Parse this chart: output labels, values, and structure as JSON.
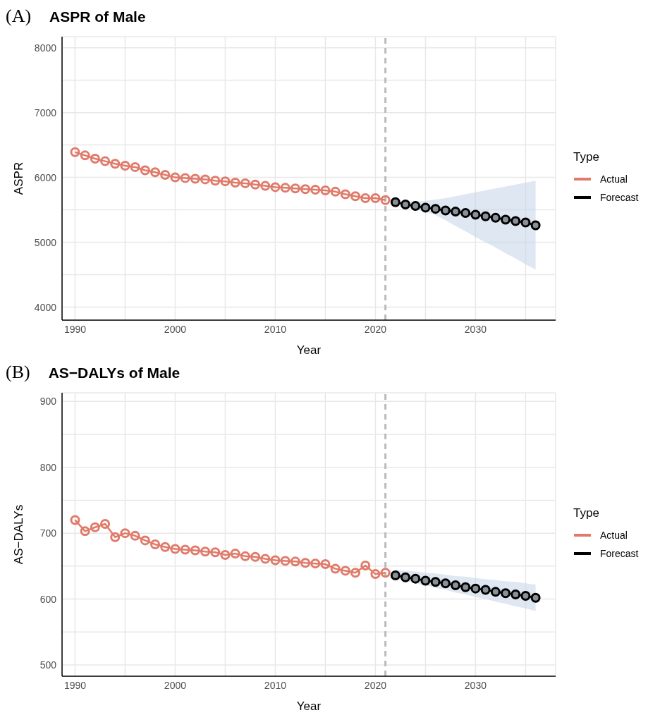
{
  "chart_data": [
    {
      "type": "line",
      "title": "ASPR of Male",
      "annotations": [
        "(A)"
      ],
      "xlabel": "Year",
      "ylabel": "ASPR",
      "legend_title": "Type",
      "legend": "right",
      "grid": true,
      "marker": "circle",
      "line_style": "solid",
      "xlim": [
        1988.7,
        2038
      ],
      "xticks": [
        1990,
        {
          "value": 1995,
          "label": null
        },
        2000,
        {
          "value": 2005,
          "label": null
        },
        2010,
        {
          "value": 2015,
          "label": null
        },
        2020,
        {
          "value": 2025,
          "label": null
        },
        2030,
        {
          "value": 2035,
          "label": null
        }
      ],
      "ylim": [
        3800,
        8170
      ],
      "yticks": [
        4000,
        {
          "value": 4500,
          "label": null
        },
        5000,
        {
          "value": 5500,
          "label": null
        },
        6000,
        {
          "value": 6500,
          "label": null
        },
        7000,
        {
          "value": 7500,
          "label": null
        },
        8000
      ],
      "ref_lines": [
        {
          "axis": "x",
          "value": 2021,
          "label": null,
          "color": "#bbbbbb",
          "line_style": "dashed"
        }
      ],
      "series": [
        {
          "name": "Actual",
          "color": "#e07b6b",
          "x": [
            1990,
            1991,
            1992,
            1993,
            1994,
            1995,
            1996,
            1997,
            1998,
            1999,
            2000,
            2001,
            2002,
            2003,
            2004,
            2005,
            2006,
            2007,
            2008,
            2009,
            2010,
            2011,
            2012,
            2013,
            2014,
            2015,
            2016,
            2017,
            2018,
            2019,
            2020,
            2021
          ],
          "values": [
            6390,
            6340,
            6290,
            6250,
            6210,
            6180,
            6160,
            6110,
            6080,
            6040,
            6000,
            5990,
            5980,
            5970,
            5950,
            5940,
            5920,
            5910,
            5890,
            5870,
            5850,
            5840,
            5830,
            5820,
            5810,
            5800,
            5780,
            5740,
            5710,
            5680,
            5680,
            5650
          ]
        },
        {
          "name": "Forecast",
          "color": "#000000",
          "x": [
            2022,
            2023,
            2024,
            2025,
            2026,
            2027,
            2028,
            2029,
            2030,
            2031,
            2032,
            2033,
            2034,
            2035,
            2036
          ],
          "values": [
            5618,
            5582,
            5560,
            5535,
            5516,
            5491,
            5473,
            5451,
            5425,
            5400,
            5378,
            5349,
            5327,
            5305,
            5262
          ],
          "lower": [
            5620,
            5570,
            5510,
            5470,
            5420,
            5340,
            5250,
            5170,
            5080,
            5000,
            4920,
            4830,
            4750,
            4660,
            4580
          ],
          "upper": [
            5620,
            5620,
            5630,
            5640,
            5660,
            5680,
            5710,
            5740,
            5770,
            5800,
            5830,
            5860,
            5890,
            5920,
            5950
          ]
        }
      ]
    },
    {
      "type": "line",
      "title": "AS−DALYs of Male",
      "annotations": [
        "(B)"
      ],
      "xlabel": "Year",
      "ylabel": "AS−DALYs",
      "legend_title": "Type",
      "legend": "right",
      "grid": true,
      "marker": "circle",
      "line_style": "solid",
      "xlim": [
        1988.7,
        2038
      ],
      "xticks": [
        1990,
        {
          "value": 1995,
          "label": null
        },
        2000,
        {
          "value": 2005,
          "label": null
        },
        2010,
        {
          "value": 2015,
          "label": null
        },
        2020,
        {
          "value": 2025,
          "label": null
        },
        2030,
        {
          "value": 2035,
          "label": null
        }
      ],
      "ylim": [
        483,
        913
      ],
      "yticks": [
        500,
        {
          "value": 550,
          "label": null
        },
        600,
        {
          "value": 650,
          "label": null
        },
        700,
        {
          "value": 750,
          "label": null
        },
        800,
        {
          "value": 850,
          "label": null
        },
        900
      ],
      "ref_lines": [
        {
          "axis": "x",
          "value": 2021,
          "label": null,
          "color": "#bbbbbb",
          "line_style": "dashed"
        }
      ],
      "series": [
        {
          "name": "Actual",
          "color": "#e07b6b",
          "x": [
            1990,
            1991,
            1992,
            1993,
            1994,
            1995,
            1996,
            1997,
            1998,
            1999,
            2000,
            2001,
            2002,
            2003,
            2004,
            2005,
            2006,
            2007,
            2008,
            2009,
            2010,
            2011,
            2012,
            2013,
            2014,
            2015,
            2016,
            2017,
            2018,
            2019,
            2020,
            2021
          ],
          "values": [
            720,
            703,
            709,
            714,
            694,
            700,
            696,
            689,
            683,
            679,
            676,
            675,
            674,
            672,
            671,
            667,
            669,
            665,
            664,
            661,
            659,
            658,
            657,
            655,
            654,
            653,
            646,
            643,
            640,
            651,
            638,
            640
          ]
        },
        {
          "name": "Forecast",
          "color": "#000000",
          "x": [
            2022,
            2023,
            2024,
            2025,
            2026,
            2027,
            2028,
            2029,
            2030,
            2031,
            2032,
            2033,
            2034,
            2035,
            2036
          ],
          "values": [
            636,
            633,
            631,
            628,
            626,
            624,
            621,
            618,
            616,
            614,
            611,
            609,
            607,
            605,
            602
          ],
          "lower": [
            631,
            628,
            624,
            621,
            617,
            614,
            610,
            607,
            603,
            600,
            596,
            593,
            589,
            586,
            582
          ],
          "upper": [
            645,
            643,
            642,
            640,
            639,
            637,
            635,
            634,
            632,
            630,
            629,
            627,
            626,
            624,
            622
          ]
        }
      ]
    }
  ]
}
